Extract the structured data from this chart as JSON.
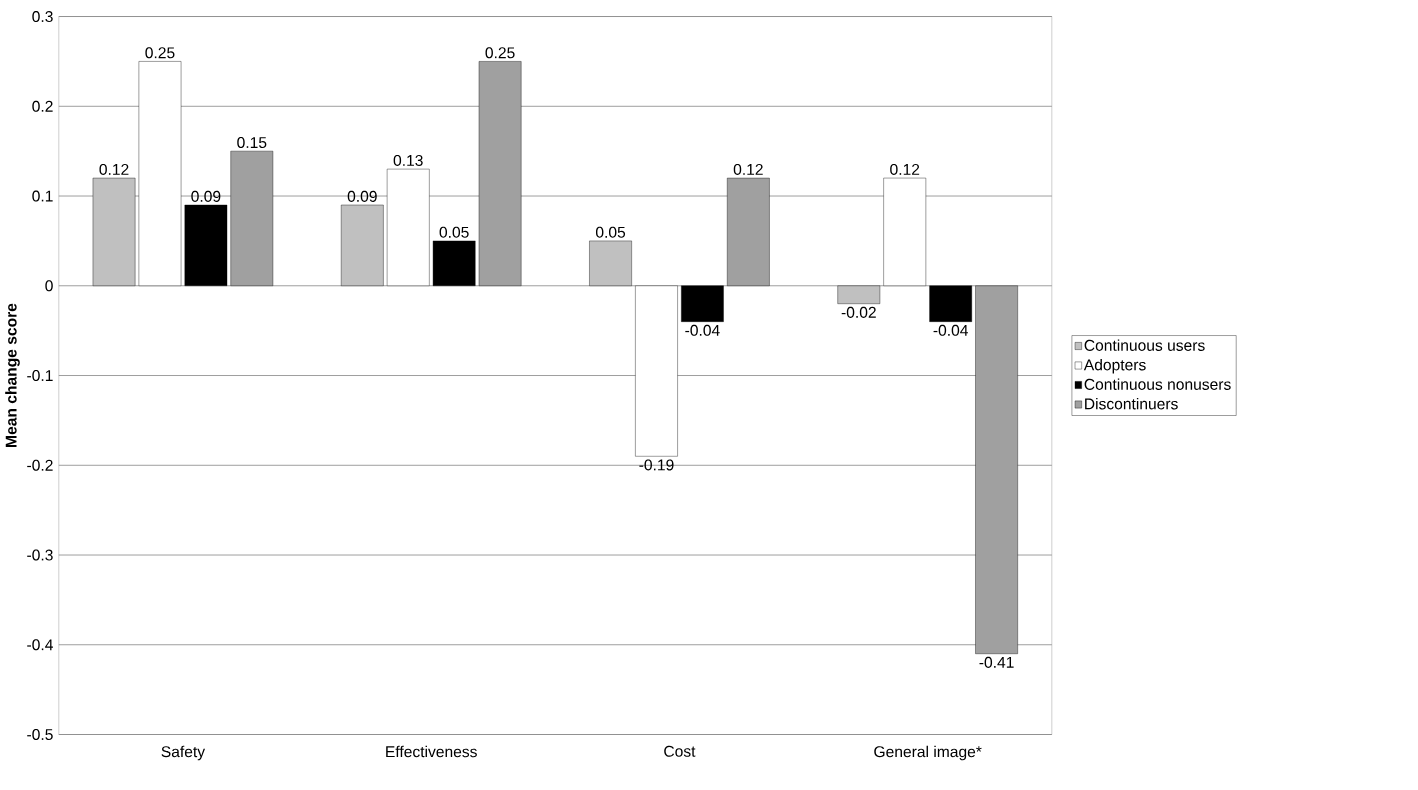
{
  "chart_data": {
    "type": "bar",
    "ylabel": "Mean change score",
    "categories": [
      "Safety",
      "Effectiveness",
      "Cost",
      "General image*"
    ],
    "series": [
      {
        "name": "Continuous users",
        "color": "#c0c0c0",
        "values": [
          0.12,
          0.09,
          0.05,
          -0.02
        ],
        "value_labels": [
          "0.12",
          "0.09",
          "0.05",
          "-0.02"
        ]
      },
      {
        "name": "Adopters",
        "color": "#ffffff",
        "values": [
          0.25,
          0.13,
          -0.19,
          0.12
        ],
        "value_labels": [
          "0.25",
          "0.13",
          "-0.19",
          "0.12"
        ]
      },
      {
        "name": "Continuous nonusers",
        "color": "#000000",
        "values": [
          0.09,
          0.05,
          -0.04,
          -0.04
        ],
        "value_labels": [
          "0.09",
          "0.05",
          "-0.04",
          "-0.04"
        ]
      },
      {
        "name": "Discontinuers",
        "color": "#a0a0a0",
        "values": [
          0.15,
          0.25,
          0.12,
          -0.41
        ],
        "value_labels": [
          "0.15",
          "0.25",
          "0.12",
          "-0.41"
        ]
      }
    ],
    "ylim": [
      -0.5,
      0.3
    ],
    "yticks": [
      -0.5,
      -0.4,
      -0.3,
      -0.2,
      -0.1,
      0,
      0.1,
      0.2,
      0.3
    ],
    "grid": "y",
    "legend": "right"
  }
}
